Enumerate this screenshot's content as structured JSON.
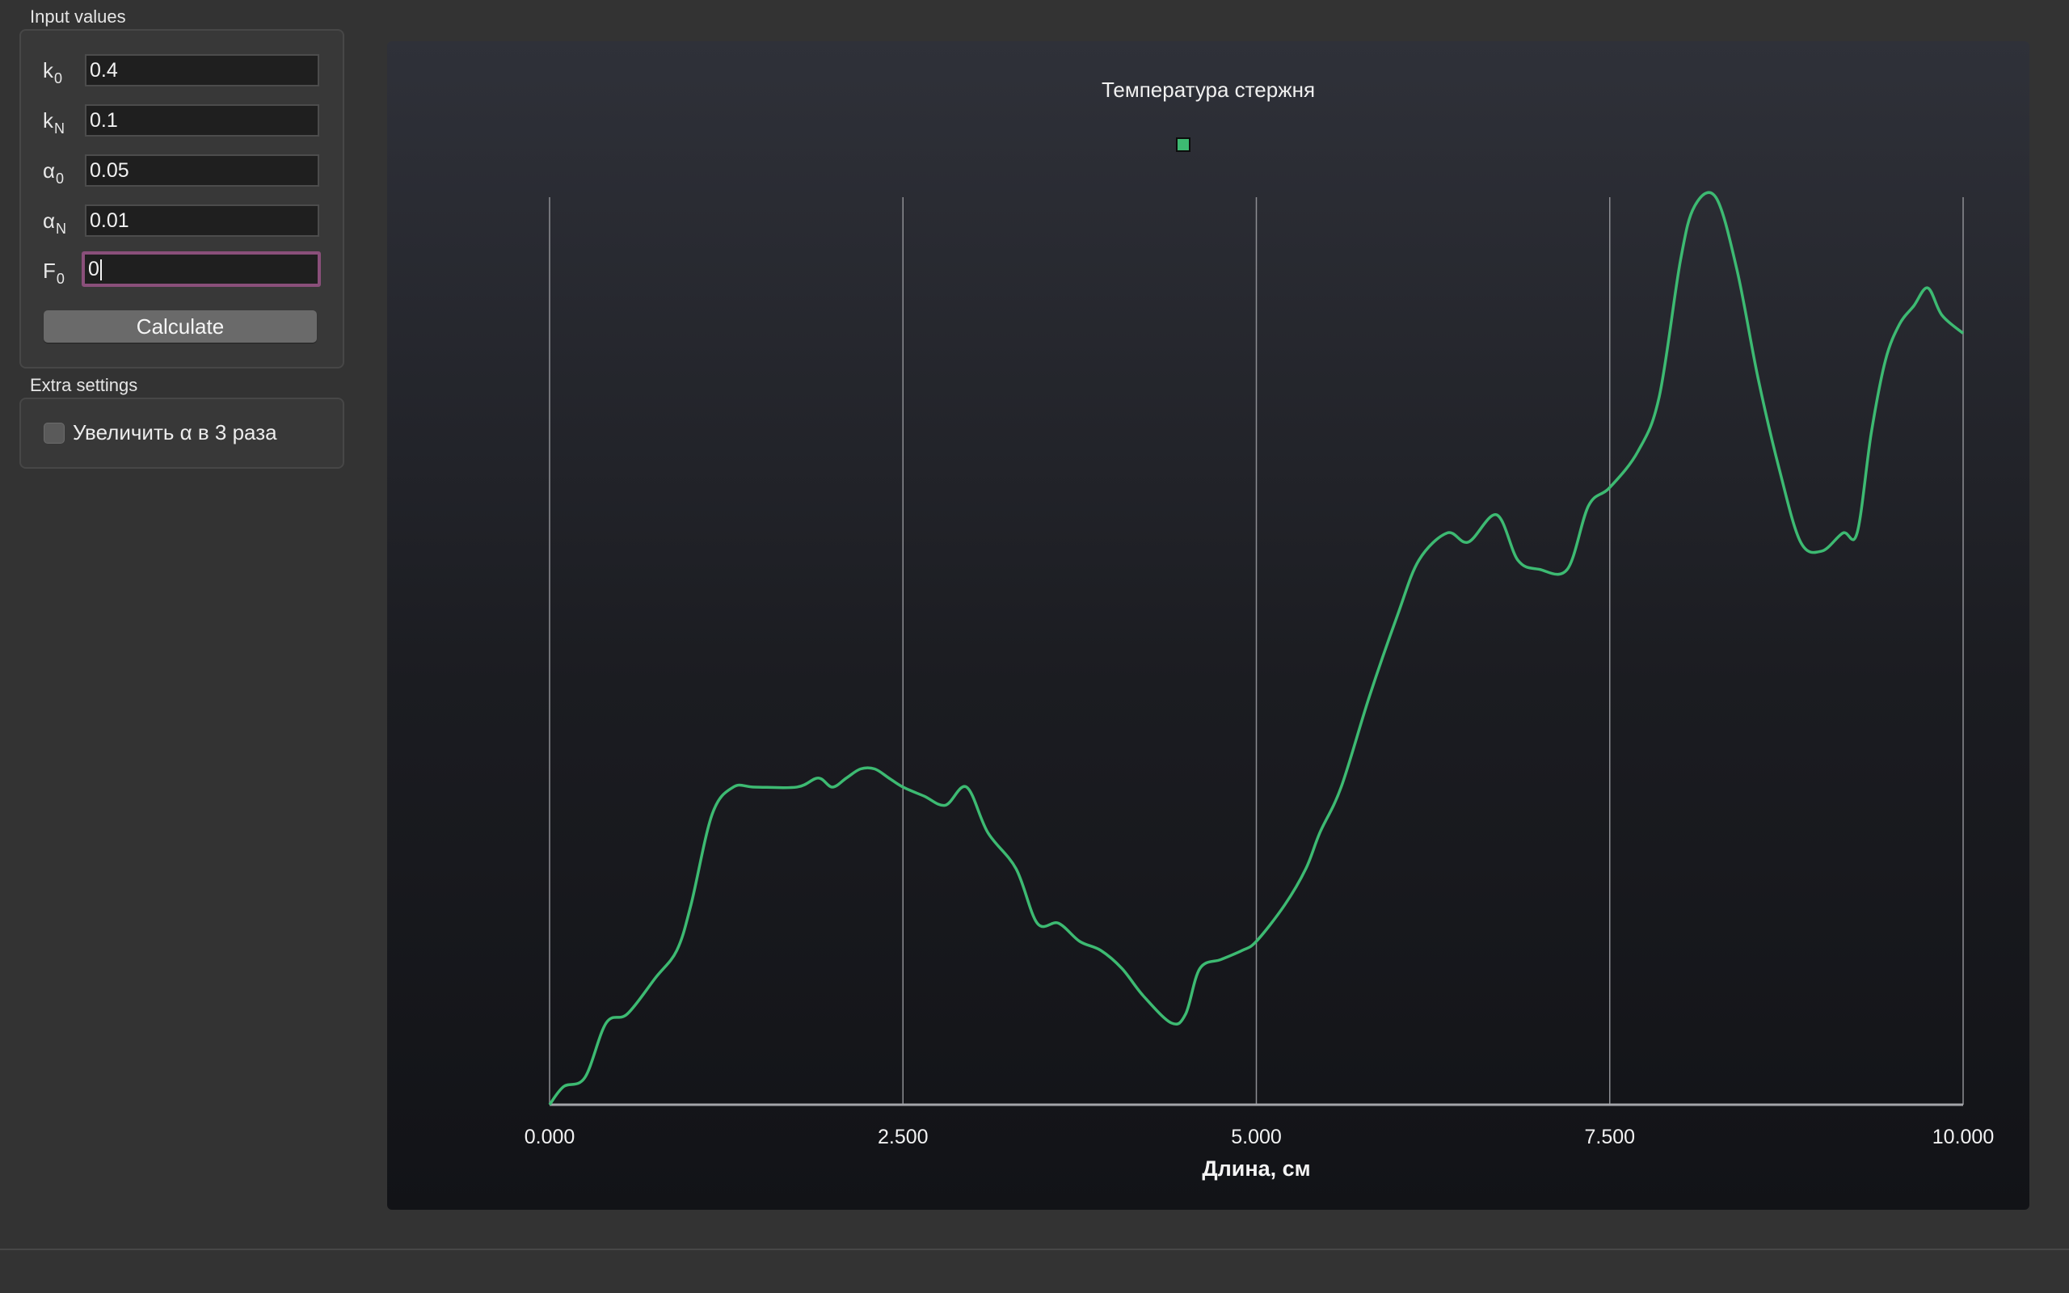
{
  "input_group": {
    "title": "Input values",
    "fields": [
      {
        "label": "k",
        "sub": "0",
        "value": "0.4"
      },
      {
        "label": "k",
        "sub": "N",
        "value": "0.1"
      },
      {
        "label": "α",
        "sub": "0",
        "value": "0.05"
      },
      {
        "label": "α",
        "sub": "N",
        "value": "0.01"
      },
      {
        "label": "F",
        "sub": "0",
        "value": "0"
      }
    ],
    "calculate_label": "Calculate"
  },
  "extra_group": {
    "title": "Extra settings",
    "checkbox_label": "Увеличить α в 3 раза",
    "checkbox_checked": false
  },
  "colors": {
    "series": "#3dba72",
    "focus_ring": "#8a4f7a"
  },
  "chart_data": {
    "type": "line",
    "title": "Температура стержня",
    "xlabel": "Длина, см",
    "ylabel": "",
    "xlim": [
      0,
      10
    ],
    "ylim": [
      0,
      1
    ],
    "x_ticks": [
      "0.000",
      "2.500",
      "5.000",
      "7.500",
      "10.000"
    ],
    "grid": "vertical",
    "legend": "top-center",
    "series": [
      {
        "color": "#3dba72",
        "x": [
          0.0,
          0.1,
          0.25,
          0.4,
          0.55,
          0.75,
          0.9,
          1.0,
          1.15,
          1.3,
          1.45,
          1.75,
          1.9,
          2.0,
          2.1,
          2.2,
          2.3,
          2.4,
          2.5,
          2.65,
          2.8,
          2.95,
          3.1,
          3.3,
          3.45,
          3.6,
          3.75,
          3.9,
          4.05,
          4.2,
          4.4,
          4.5,
          4.6,
          4.75,
          4.9,
          5.0,
          5.2,
          5.35,
          5.45,
          5.6,
          5.8,
          6.0,
          6.15,
          6.35,
          6.5,
          6.7,
          6.85,
          7.0,
          7.2,
          7.35,
          7.5,
          7.7,
          7.85,
          8.0,
          8.1,
          8.25,
          8.4,
          8.55,
          8.7,
          8.85,
          9.0,
          9.15,
          9.25,
          9.35,
          9.45,
          9.55,
          9.65,
          9.75,
          9.85,
          10.0
        ],
        "values": [
          0.0,
          0.02,
          0.03,
          0.09,
          0.1,
          0.14,
          0.17,
          0.22,
          0.32,
          0.35,
          0.35,
          0.35,
          0.36,
          0.35,
          0.36,
          0.37,
          0.37,
          0.36,
          0.35,
          0.34,
          0.33,
          0.35,
          0.3,
          0.26,
          0.2,
          0.2,
          0.18,
          0.17,
          0.15,
          0.12,
          0.09,
          0.1,
          0.15,
          0.16,
          0.17,
          0.18,
          0.22,
          0.26,
          0.3,
          0.35,
          0.45,
          0.54,
          0.6,
          0.63,
          0.62,
          0.65,
          0.6,
          0.59,
          0.59,
          0.66,
          0.68,
          0.72,
          0.78,
          0.93,
          0.99,
          1.0,
          0.92,
          0.8,
          0.7,
          0.62,
          0.61,
          0.63,
          0.63,
          0.74,
          0.82,
          0.86,
          0.88,
          0.9,
          0.87,
          0.85
        ]
      }
    ]
  }
}
